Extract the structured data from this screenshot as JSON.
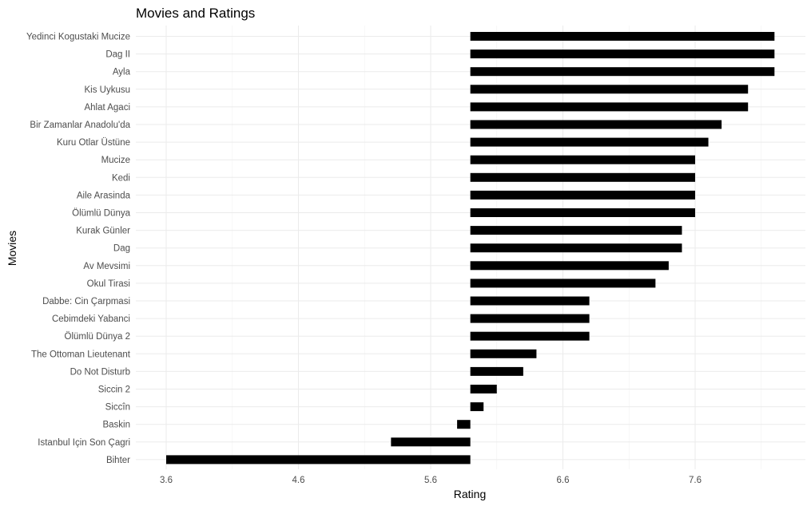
{
  "chart_data": {
    "type": "bar",
    "orientation": "horizontal",
    "title": "Movies and Ratings",
    "xlabel": "Rating",
    "ylabel": "Movies",
    "baseline": 5.9,
    "xlim": [
      3.6,
      8.4
    ],
    "xticks": [
      "3.6",
      "4.6",
      "5.6",
      "6.6",
      "7.6"
    ],
    "xtick_values": [
      3.6,
      4.6,
      5.6,
      6.6,
      7.6
    ],
    "grid": true,
    "legend": "none",
    "bar_color": "#000000",
    "categories": [
      "Yedinci Kogustaki Mucize",
      "Dag II",
      "Ayla",
      "Kis Uykusu",
      "Ahlat Agaci",
      "Bir Zamanlar Anadolu'da",
      "Kuru Otlar Üstüne",
      "Mucize",
      "Kedi",
      "Aile Arasinda",
      "Ölümlü Dünya",
      "Kurak Günler",
      "Dag",
      "Av Mevsimi",
      "Okul Tirasi",
      "Dabbe: Cin Çarpmasi",
      "Cebimdeki Yabanci",
      "Ölümlü Dünya 2",
      "The Ottoman Lieutenant",
      "Do Not Disturb",
      "Siccin 2",
      "Siccîn",
      "Baskin",
      "Istanbul Için Son Çagri",
      "Bihter"
    ],
    "values": [
      8.2,
      8.2,
      8.2,
      8.0,
      8.0,
      7.8,
      7.7,
      7.6,
      7.6,
      7.6,
      7.6,
      7.5,
      7.5,
      7.4,
      7.3,
      6.8,
      6.8,
      6.8,
      6.4,
      6.3,
      6.1,
      6.0,
      5.8,
      5.3,
      3.6
    ]
  }
}
